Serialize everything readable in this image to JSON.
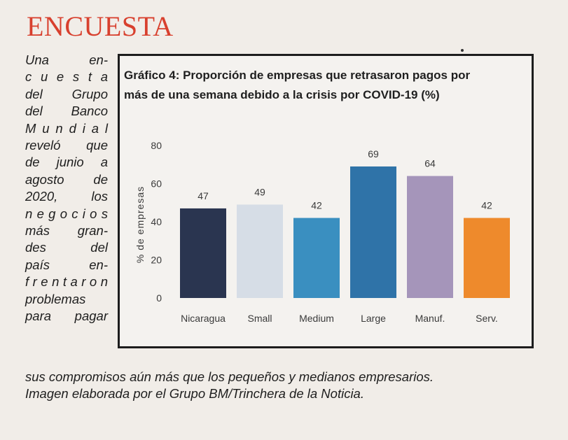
{
  "article": {
    "heading": "ENCUESTA",
    "side_lines": [
      "Una en-",
      "c u e s t a",
      "del Grupo",
      "del Banco",
      "M u n d i a l",
      "reveló que",
      "de junio a",
      "agosto de",
      "2020, los",
      "n e g o c i o s",
      "más gran-",
      "des del",
      "país en-",
      "f r e n t a r o n",
      "problemas",
      "para pagar"
    ],
    "bottom_lines": [
      "sus compromisos aún más que los pequeños y medianos empresarios.",
      "Imagen elaborada por el Grupo BM/Trinchera de la Noticia."
    ]
  },
  "chart_data": {
    "type": "bar",
    "title_lines": [
      "Gráfico 4: Proporción de empresas que retrasaron pagos por",
      "más de una semana debido a la crisis por COVID-19 (%)"
    ],
    "categories": [
      "Nicaragua",
      "Small",
      "Medium",
      "Large",
      "Manuf.",
      "Serv."
    ],
    "values": [
      47,
      49,
      42,
      69,
      64,
      42
    ],
    "colors": [
      "#2a3550",
      "#d6dde6",
      "#3a8fc0",
      "#2f73a8",
      "#a595ba",
      "#ee8a2c"
    ],
    "ylabel": "% de empresas",
    "xlabel": "",
    "ylim": [
      0,
      80
    ],
    "yticks": [
      0,
      20,
      40,
      60,
      80
    ],
    "grid": false
  }
}
